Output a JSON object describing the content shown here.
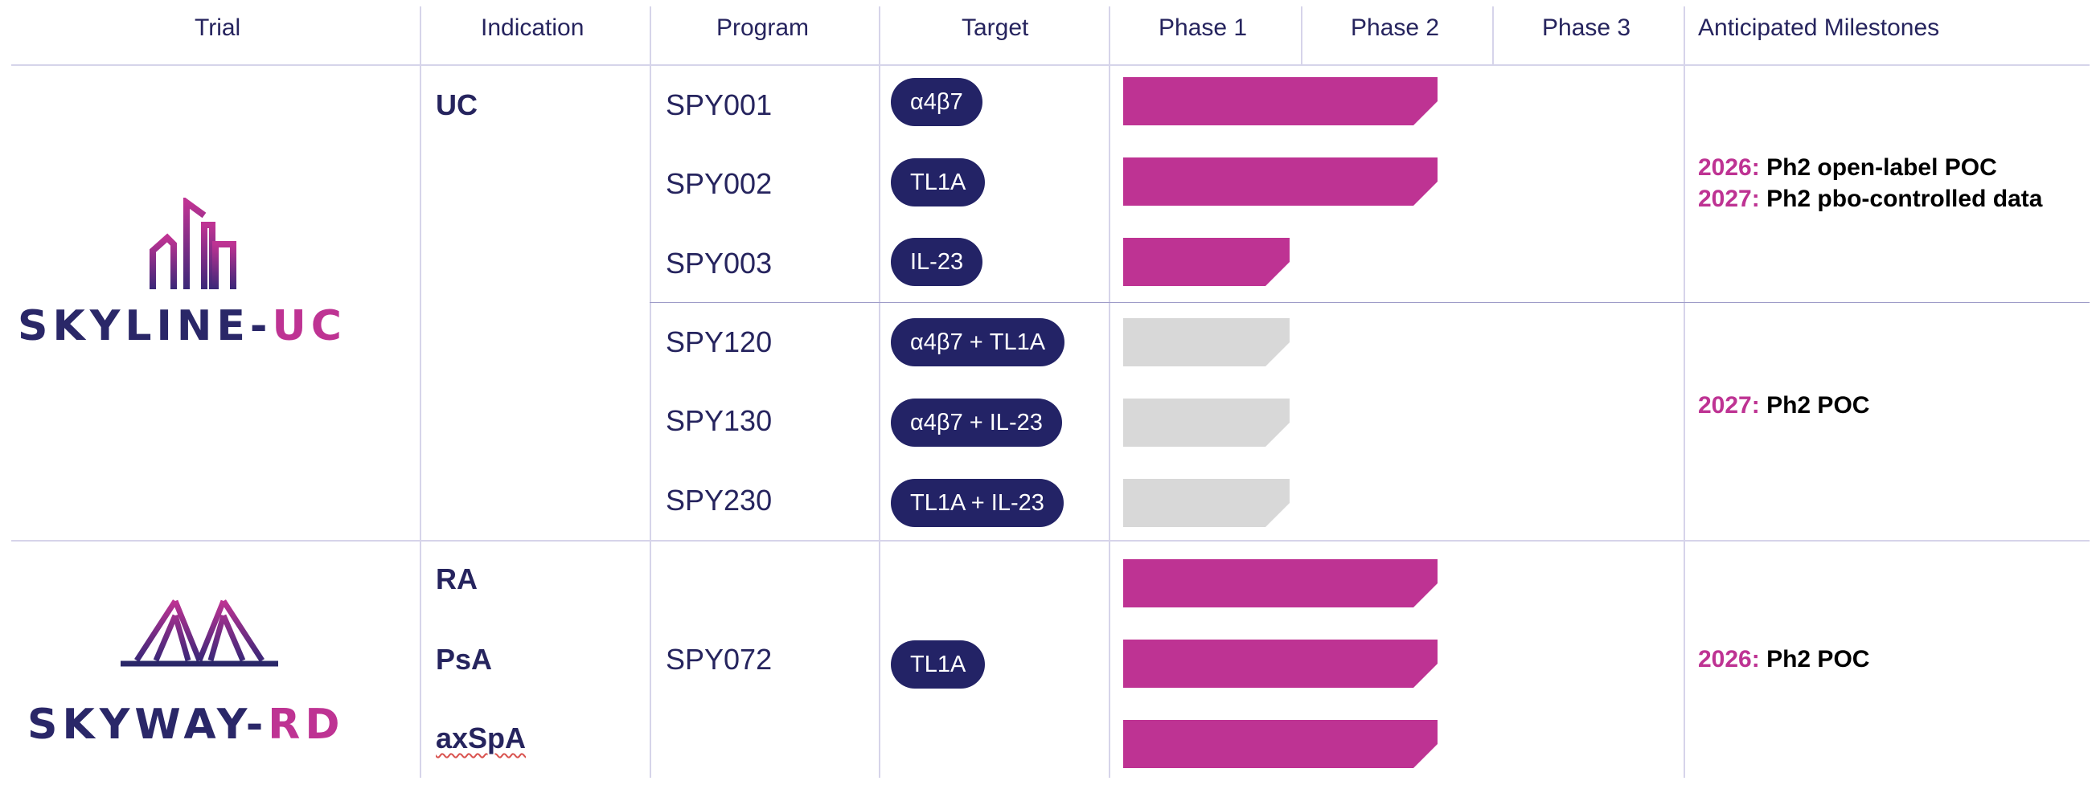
{
  "headers": {
    "trial": "Trial",
    "indication": "Indication",
    "program": "Program",
    "target": "Target",
    "phase1": "Phase 1",
    "phase2": "Phase 2",
    "phase3": "Phase 3",
    "milestones": "Anticipated Milestones"
  },
  "trials": {
    "skyline": {
      "name_main": "SKYLINE-",
      "name_accent": "UC",
      "logo_icon": "building-icon"
    },
    "skyway": {
      "name_main": "SKYWAY-",
      "name_accent": "RD",
      "logo_icon": "bridge-icon"
    }
  },
  "indications": [
    "UC",
    "RA",
    "PsA",
    "axSpA"
  ],
  "programs": [
    {
      "name": "SPY001",
      "target": "α4β7",
      "phase_progress": 0.85,
      "status": "active"
    },
    {
      "name": "SPY002",
      "target": "TL1A",
      "phase_progress": 0.85,
      "status": "active"
    },
    {
      "name": "SPY003",
      "target": "IL-23",
      "phase_progress": 0.45,
      "status": "active"
    },
    {
      "name": "SPY120",
      "target": "α4β7 + TL1A",
      "phase_progress": 0.45,
      "status": "planned"
    },
    {
      "name": "SPY130",
      "target": "α4β7 + IL-23",
      "phase_progress": 0.45,
      "status": "planned"
    },
    {
      "name": "SPY230",
      "target": "TL1A + IL-23",
      "phase_progress": 0.45,
      "status": "planned"
    }
  ],
  "skyway_program": {
    "name": "SPY072",
    "target": "TL1A",
    "bars": [
      0.85,
      0.85,
      0.85
    ]
  },
  "milestones": {
    "group1": [
      {
        "year": "2026:",
        "text": "Ph2 open-label POC"
      },
      {
        "year": "2027:",
        "text": "Ph2 pbo-controlled data"
      }
    ],
    "group2": [
      {
        "year": "2027:",
        "text": "Ph2 POC"
      }
    ],
    "group3": [
      {
        "year": "2026:",
        "text": "Ph2 POC"
      }
    ]
  },
  "colors": {
    "navy": "#232366",
    "magenta": "#be3393",
    "gray": "#d8d8d8"
  }
}
